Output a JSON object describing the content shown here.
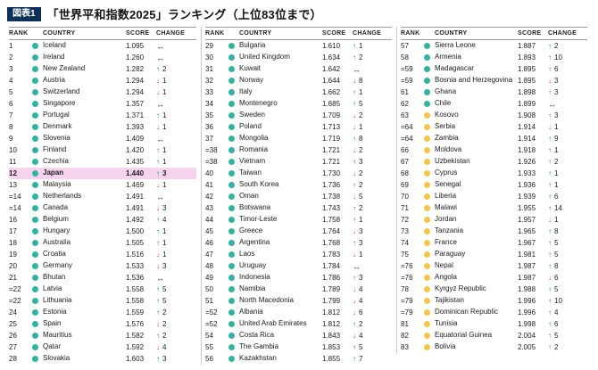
{
  "header": {
    "tag": "図表1",
    "title": "「世界平和指数2025」ランキング（上位83位まで）"
  },
  "columns": [
    "RANK",
    "COUNTRY",
    "SCORE",
    "CHANGE"
  ],
  "colors": {
    "tag_bg": "#0e3057",
    "highlight_row": "#f6d4ef",
    "tier_high": "#35b1a0",
    "tier_medium": "#f2c64b",
    "up": "#00953b",
    "down": "#e8382f",
    "same": "#333333"
  },
  "chart_data": {
    "type": "table",
    "title": "「世界平和指数2025」ランキング（上位83位まで）",
    "columns": [
      "RANK",
      "COUNTRY",
      "SCORE",
      "CHANGE"
    ]
  },
  "tables": [
    {
      "rows": [
        {
          "rank": "1",
          "country": "Iceland",
          "score": "1.095",
          "dir": "same",
          "delta": "",
          "tier": "high"
        },
        {
          "rank": "2",
          "country": "Ireland",
          "score": "1.260",
          "dir": "same",
          "delta": "",
          "tier": "high"
        },
        {
          "rank": "3",
          "country": "New Zealand",
          "score": "1.282",
          "dir": "up",
          "delta": "2",
          "tier": "high"
        },
        {
          "rank": "4",
          "country": "Austria",
          "score": "1.294",
          "dir": "down",
          "delta": "1",
          "tier": "high"
        },
        {
          "rank": "5",
          "country": "Switzerland",
          "score": "1.294",
          "dir": "down",
          "delta": "1",
          "tier": "high"
        },
        {
          "rank": "6",
          "country": "Singapore",
          "score": "1.357",
          "dir": "same",
          "delta": "",
          "tier": "high"
        },
        {
          "rank": "7",
          "country": "Portugal",
          "score": "1.371",
          "dir": "up",
          "delta": "1",
          "tier": "high"
        },
        {
          "rank": "8",
          "country": "Denmark",
          "score": "1.393",
          "dir": "down",
          "delta": "1",
          "tier": "high"
        },
        {
          "rank": "9",
          "country": "Slovenia",
          "score": "1.409",
          "dir": "same",
          "delta": "",
          "tier": "high"
        },
        {
          "rank": "10",
          "country": "Finland",
          "score": "1.420",
          "dir": "up",
          "delta": "1",
          "tier": "high"
        },
        {
          "rank": "11",
          "country": "Czechia",
          "score": "1.435",
          "dir": "up",
          "delta": "1",
          "tier": "high"
        },
        {
          "rank": "12",
          "country": "Japan",
          "score": "1.440",
          "dir": "up",
          "delta": "3",
          "tier": "high",
          "highlight": true
        },
        {
          "rank": "13",
          "country": "Malaysia",
          "score": "1.469",
          "dir": "down",
          "delta": "1",
          "tier": "high"
        },
        {
          "rank": "=14",
          "country": "Netherlands",
          "score": "1.491",
          "dir": "same",
          "delta": "",
          "tier": "high"
        },
        {
          "rank": "=14",
          "country": "Canada",
          "score": "1.491",
          "dir": "down",
          "delta": "3",
          "tier": "high"
        },
        {
          "rank": "16",
          "country": "Belgium",
          "score": "1.492",
          "dir": "up",
          "delta": "4",
          "tier": "high"
        },
        {
          "rank": "17",
          "country": "Hungary",
          "score": "1.500",
          "dir": "up",
          "delta": "1",
          "tier": "high"
        },
        {
          "rank": "18",
          "country": "Australia",
          "score": "1.505",
          "dir": "up",
          "delta": "1",
          "tier": "high"
        },
        {
          "rank": "19",
          "country": "Croatia",
          "score": "1.516",
          "dir": "down",
          "delta": "1",
          "tier": "high"
        },
        {
          "rank": "20",
          "country": "Germany",
          "score": "1.533",
          "dir": "down",
          "delta": "3",
          "tier": "high"
        },
        {
          "rank": "21",
          "country": "Bhutan",
          "score": "1.536",
          "dir": "same",
          "delta": "",
          "tier": "high"
        },
        {
          "rank": "=22",
          "country": "Latvia",
          "score": "1.558",
          "dir": "up",
          "delta": "5",
          "tier": "high"
        },
        {
          "rank": "=22",
          "country": "Lithuania",
          "score": "1.558",
          "dir": "up",
          "delta": "5",
          "tier": "high"
        },
        {
          "rank": "24",
          "country": "Estonia",
          "score": "1.559",
          "dir": "up",
          "delta": "2",
          "tier": "high"
        },
        {
          "rank": "25",
          "country": "Spain",
          "score": "1.576",
          "dir": "down",
          "delta": "2",
          "tier": "high"
        },
        {
          "rank": "26",
          "country": "Mauritius",
          "score": "1.582",
          "dir": "up",
          "delta": "2",
          "tier": "high"
        },
        {
          "rank": "27",
          "country": "Qatar",
          "score": "1.592",
          "dir": "down",
          "delta": "4",
          "tier": "high"
        },
        {
          "rank": "28",
          "country": "Slovakia",
          "score": "1.603",
          "dir": "up",
          "delta": "3",
          "tier": "high"
        }
      ]
    },
    {
      "rows": [
        {
          "rank": "29",
          "country": "Bulgaria",
          "score": "1.610",
          "dir": "up",
          "delta": "1",
          "tier": "high"
        },
        {
          "rank": "30",
          "country": "United Kingdom",
          "score": "1.634",
          "dir": "up",
          "delta": "2",
          "tier": "high"
        },
        {
          "rank": "31",
          "country": "Kuwait",
          "score": "1.642",
          "dir": "same",
          "delta": "",
          "tier": "high"
        },
        {
          "rank": "32",
          "country": "Norway",
          "score": "1.644",
          "dir": "down",
          "delta": "8",
          "tier": "high"
        },
        {
          "rank": "33",
          "country": "Italy",
          "score": "1.662",
          "dir": "up",
          "delta": "1",
          "tier": "high"
        },
        {
          "rank": "34",
          "country": "Montenegro",
          "score": "1.685",
          "dir": "up",
          "delta": "5",
          "tier": "high"
        },
        {
          "rank": "35",
          "country": "Sweden",
          "score": "1.709",
          "dir": "down",
          "delta": "2",
          "tier": "high"
        },
        {
          "rank": "36",
          "country": "Poland",
          "score": "1.713",
          "dir": "down",
          "delta": "1",
          "tier": "high"
        },
        {
          "rank": "37",
          "country": "Mongolia",
          "score": "1.719",
          "dir": "up",
          "delta": "8",
          "tier": "high"
        },
        {
          "rank": "=38",
          "country": "Romania",
          "score": "1.721",
          "dir": "down",
          "delta": "2",
          "tier": "high"
        },
        {
          "rank": "=38",
          "country": "Vietnam",
          "score": "1.721",
          "dir": "up",
          "delta": "3",
          "tier": "high"
        },
        {
          "rank": "40",
          "country": "Taiwan",
          "score": "1.730",
          "dir": "down",
          "delta": "2",
          "tier": "high"
        },
        {
          "rank": "41",
          "country": "South Korea",
          "score": "1.736",
          "dir": "up",
          "delta": "2",
          "tier": "high"
        },
        {
          "rank": "42",
          "country": "Oman",
          "score": "1.738",
          "dir": "down",
          "delta": "5",
          "tier": "high"
        },
        {
          "rank": "43",
          "country": "Botswana",
          "score": "1.743",
          "dir": "up",
          "delta": "2",
          "tier": "high"
        },
        {
          "rank": "44",
          "country": "Timor-Leste",
          "score": "1.758",
          "dir": "up",
          "delta": "1",
          "tier": "high"
        },
        {
          "rank": "45",
          "country": "Greece",
          "score": "1.764",
          "dir": "down",
          "delta": "3",
          "tier": "high"
        },
        {
          "rank": "46",
          "country": "Argentina",
          "score": "1.768",
          "dir": "up",
          "delta": "3",
          "tier": "high"
        },
        {
          "rank": "47",
          "country": "Laos",
          "score": "1.783",
          "dir": "down",
          "delta": "1",
          "tier": "high"
        },
        {
          "rank": "48",
          "country": "Uruguay",
          "score": "1.784",
          "dir": "same",
          "delta": "",
          "tier": "high"
        },
        {
          "rank": "49",
          "country": "Indonesia",
          "score": "1.786",
          "dir": "up",
          "delta": "3",
          "tier": "high"
        },
        {
          "rank": "50",
          "country": "Namibia",
          "score": "1.789",
          "dir": "down",
          "delta": "4",
          "tier": "high"
        },
        {
          "rank": "51",
          "country": "North Macedonia",
          "score": "1.799",
          "dir": "down",
          "delta": "4",
          "tier": "high"
        },
        {
          "rank": "=52",
          "country": "Albania",
          "score": "1.812",
          "dir": "down",
          "delta": "6",
          "tier": "high"
        },
        {
          "rank": "=52",
          "country": "United Arab Emirates",
          "score": "1.812",
          "dir": "up",
          "delta": "2",
          "tier": "high"
        },
        {
          "rank": "54",
          "country": "Costa Rica",
          "score": "1.843",
          "dir": "down",
          "delta": "4",
          "tier": "high"
        },
        {
          "rank": "55",
          "country": "The Gambia",
          "score": "1.853",
          "dir": "up",
          "delta": "5",
          "tier": "high"
        },
        {
          "rank": "56",
          "country": "Kazakhstan",
          "score": "1.855",
          "dir": "up",
          "delta": "7",
          "tier": "high"
        }
      ]
    },
    {
      "rows": [
        {
          "rank": "57",
          "country": "Sierra Leone",
          "score": "1.887",
          "dir": "up",
          "delta": "2",
          "tier": "high"
        },
        {
          "rank": "58",
          "country": "Armenia",
          "score": "1.893",
          "dir": "up",
          "delta": "10",
          "tier": "high"
        },
        {
          "rank": "=59",
          "country": "Madagascar",
          "score": "1.895",
          "dir": "up",
          "delta": "6",
          "tier": "high"
        },
        {
          "rank": "=59",
          "country": "Bosnia and Herzegovina",
          "score": "1.895",
          "dir": "down",
          "delta": "3",
          "tier": "high"
        },
        {
          "rank": "61",
          "country": "Ghana",
          "score": "1.898",
          "dir": "up",
          "delta": "3",
          "tier": "high"
        },
        {
          "rank": "62",
          "country": "Chile",
          "score": "1.899",
          "dir": "same",
          "delta": "",
          "tier": "high"
        },
        {
          "rank": "63",
          "country": "Kosovo",
          "score": "1.908",
          "dir": "up",
          "delta": "3",
          "tier": "medium"
        },
        {
          "rank": "=64",
          "country": "Serbia",
          "score": "1.914",
          "dir": "down",
          "delta": "1",
          "tier": "medium"
        },
        {
          "rank": "=64",
          "country": "Zambia",
          "score": "1.914",
          "dir": "up",
          "delta": "9",
          "tier": "medium"
        },
        {
          "rank": "66",
          "country": "Moldova",
          "score": "1.918",
          "dir": "up",
          "delta": "1",
          "tier": "medium"
        },
        {
          "rank": "67",
          "country": "Uzbekistan",
          "score": "1.926",
          "dir": "up",
          "delta": "2",
          "tier": "medium"
        },
        {
          "rank": "68",
          "country": "Cyprus",
          "score": "1.933",
          "dir": "up",
          "delta": "1",
          "tier": "medium"
        },
        {
          "rank": "69",
          "country": "Senegal",
          "score": "1.936",
          "dir": "up",
          "delta": "1",
          "tier": "medium"
        },
        {
          "rank": "70",
          "country": "Liberia",
          "score": "1.939",
          "dir": "up",
          "delta": "6",
          "tier": "medium"
        },
        {
          "rank": "71",
          "country": "Malawi",
          "score": "1.955",
          "dir": "up",
          "delta": "14",
          "tier": "medium"
        },
        {
          "rank": "72",
          "country": "Jordan",
          "score": "1.957",
          "dir": "down",
          "delta": "1",
          "tier": "medium"
        },
        {
          "rank": "73",
          "country": "Tanzania",
          "score": "1.965",
          "dir": "up",
          "delta": "8",
          "tier": "medium"
        },
        {
          "rank": "74",
          "country": "France",
          "score": "1.967",
          "dir": "up",
          "delta": "5",
          "tier": "medium"
        },
        {
          "rank": "75",
          "country": "Paraguay",
          "score": "1.981",
          "dir": "up",
          "delta": "5",
          "tier": "medium"
        },
        {
          "rank": "=76",
          "country": "Nepal",
          "score": "1.987",
          "dir": "up",
          "delta": "8",
          "tier": "medium"
        },
        {
          "rank": "=76",
          "country": "Angola",
          "score": "1.987",
          "dir": "down",
          "delta": "6",
          "tier": "medium"
        },
        {
          "rank": "78",
          "country": "Kyrgyz Republic",
          "score": "1.988",
          "dir": "up",
          "delta": "5",
          "tier": "medium"
        },
        {
          "rank": "=79",
          "country": "Tajikistan",
          "score": "1.996",
          "dir": "up",
          "delta": "10",
          "tier": "medium"
        },
        {
          "rank": "=79",
          "country": "Dominican Republic",
          "score": "1.996",
          "dir": "up",
          "delta": "4",
          "tier": "medium"
        },
        {
          "rank": "81",
          "country": "Tunisia",
          "score": "1.998",
          "dir": "up",
          "delta": "6",
          "tier": "medium"
        },
        {
          "rank": "82",
          "country": "Equatorial Guinea",
          "score": "2.004",
          "dir": "up",
          "delta": "5",
          "tier": "medium"
        },
        {
          "rank": "83",
          "country": "Bolivia",
          "score": "2.005",
          "dir": "up",
          "delta": "2",
          "tier": "medium"
        }
      ]
    }
  ]
}
